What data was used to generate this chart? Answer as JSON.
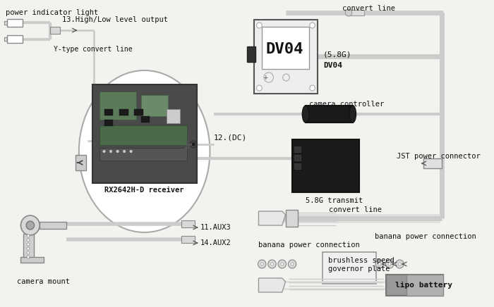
{
  "bg": "#f2f2ee",
  "labels": {
    "power_indicator": "power indicator light",
    "high_low": "13.High/Low level output",
    "y_type": "Y-type convert line",
    "convert_line_top": "convert line",
    "dv04_main": "DV04",
    "dv04_sub1": "(5.8G)",
    "dv04_sub2": "DV04",
    "camera_controller": "camera controller",
    "dc": "12.(DC)",
    "transmit": "5.8G transmit",
    "jst": "JST power connector",
    "convert_line_bot": "convert line",
    "banana_left": "banana power connection",
    "brushless": "brushless speed\ngovernor plate",
    "banana_right": "banana power connection",
    "lipo": "lipo battery",
    "aux3": "11.AUX3",
    "aux2": "14.AUX2",
    "camera_mount": "camera mount",
    "rx": "RX2642H-D receiver"
  }
}
